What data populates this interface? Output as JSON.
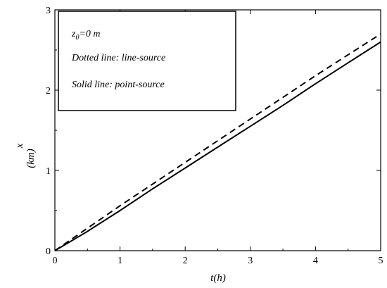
{
  "chart_data": {
    "type": "line",
    "xlabel": "t(h)",
    "ylabel_line1": "x",
    "ylabel_line2": "(km)",
    "xlim": [
      0,
      5
    ],
    "ylim": [
      0,
      3
    ],
    "x_ticks": [
      0,
      1,
      2,
      3,
      4,
      5
    ],
    "y_ticks": [
      0,
      1,
      2,
      3
    ],
    "grid": false,
    "legend": {
      "placement": "top-left",
      "line1_var": "z",
      "line1_sub": "0",
      "line1_rest": "=0 m",
      "line2": "Dotted line: line-source",
      "line3": "Solid line: point-source"
    },
    "series": [
      {
        "style": "dashed",
        "color": "#000000",
        "x": [
          0,
          0.5,
          1,
          1.5,
          2,
          2.5,
          3,
          3.5,
          4,
          4.5,
          5
        ],
        "y": [
          0,
          0.28,
          0.56,
          0.83,
          1.1,
          1.37,
          1.64,
          1.91,
          2.18,
          2.44,
          2.7
        ]
      },
      {
        "style": "solid",
        "color": "#000000",
        "x": [
          0,
          0.5,
          1,
          1.5,
          2,
          2.5,
          3,
          3.5,
          4,
          4.5,
          5
        ],
        "y": [
          0,
          0.24,
          0.5,
          0.77,
          1.03,
          1.29,
          1.55,
          1.81,
          2.08,
          2.34,
          2.6
        ]
      }
    ]
  }
}
